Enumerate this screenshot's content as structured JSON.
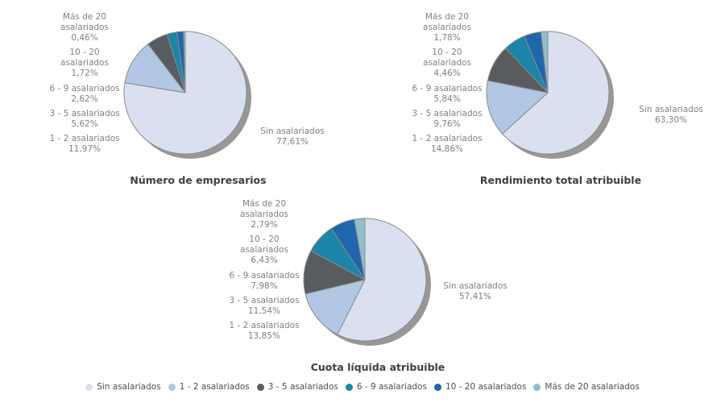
{
  "styles": {
    "background": "#ffffff",
    "slice_stroke": "#8a8a8a",
    "shadow_color": "#979797",
    "label_color": "#818181",
    "title_color": "#3e3e3e",
    "legend_text_color": "#4e4e4e"
  },
  "legend": {
    "items": [
      {
        "label": "Sin asalariados",
        "color": "#dbe0f0"
      },
      {
        "label": "1 - 2 asalariados",
        "color": "#b1c7e3"
      },
      {
        "label": "3 - 5 asalariados",
        "color": "#595c5e"
      },
      {
        "label": "6 - 9 asalariados",
        "color": "#1a85a6"
      },
      {
        "label": "10 - 20 asalariados",
        "color": "#2066ac"
      },
      {
        "label": "Más de 20 asalariados",
        "color": "#90becd"
      }
    ]
  },
  "charts": [
    {
      "title": "Número de empresarios",
      "labels_left": [
        {
          "lines": [
            "Más de 20",
            "asalariados",
            "0,46%"
          ]
        },
        {
          "lines": [
            "10 - 20",
            "asalariados",
            "1,72%"
          ]
        },
        {
          "lines": [
            "6 - 9 asalariados",
            "2,62%"
          ]
        },
        {
          "lines": [
            "3 - 5 asalariados",
            "5,62%"
          ]
        },
        {
          "lines": [
            "1 - 2 asalariados",
            "11,97%"
          ]
        }
      ],
      "label_right": {
        "lines": [
          "Sin asalariados",
          "77,61%"
        ]
      }
    },
    {
      "title": "Rendimiento total atribuible",
      "labels_left": [
        {
          "lines": [
            "Más de 20",
            "asalariados",
            "1,78%"
          ]
        },
        {
          "lines": [
            "10 - 20",
            "asalariados",
            "4,46%"
          ]
        },
        {
          "lines": [
            "6 - 9 asalariados",
            "5,84%"
          ]
        },
        {
          "lines": [
            "3 - 5 asalariados",
            "9,76%"
          ]
        },
        {
          "lines": [
            "1 - 2 asalariados",
            "14,86%"
          ]
        }
      ],
      "label_right": {
        "lines": [
          "Sin asalariados",
          "63,30%"
        ]
      }
    },
    {
      "title": "Cuota líquida atribuible",
      "labels_left": [
        {
          "lines": [
            "Más de 20",
            "asalariados",
            "2,79%"
          ]
        },
        {
          "lines": [
            "10 - 20",
            "asalariados",
            "6,43%"
          ]
        },
        {
          "lines": [
            "6 - 9 asalariados",
            "7,98%"
          ]
        },
        {
          "lines": [
            "3 - 5 asalariados",
            "11,54%"
          ]
        },
        {
          "lines": [
            "1 - 2 asalariados",
            "13,85%"
          ]
        }
      ],
      "label_right": {
        "lines": [
          "Sin asalariados",
          "57,41%"
        ]
      }
    }
  ],
  "chart_data": [
    {
      "type": "pie",
      "title": "Número de empresarios",
      "labels": [
        "Sin asalariados",
        "1 - 2 asalariados",
        "3 - 5 asalariados",
        "6 - 9 asalariados",
        "10 - 20 asalariados",
        "Más de 20 asalariados"
      ],
      "values": [
        77.61,
        11.97,
        5.62,
        2.62,
        1.72,
        0.46
      ],
      "colors": [
        "#dbe0f0",
        "#b1c7e3",
        "#595c5e",
        "#1a85a6",
        "#2066ac",
        "#90becd"
      ],
      "units": "%",
      "start_angle_deg": 0,
      "direction": "clockwise",
      "legend_position": "bottom"
    },
    {
      "type": "pie",
      "title": "Rendimiento total atribuible",
      "labels": [
        "Sin asalariados",
        "1 - 2 asalariados",
        "3 - 5 asalariados",
        "6 - 9 asalariados",
        "10 - 20 asalariados",
        "Más de 20 asalariados"
      ],
      "values": [
        63.3,
        14.86,
        9.76,
        5.84,
        4.46,
        1.78
      ],
      "colors": [
        "#dbe0f0",
        "#b1c7e3",
        "#595c5e",
        "#1a85a6",
        "#2066ac",
        "#90becd"
      ],
      "units": "%",
      "start_angle_deg": 0,
      "direction": "clockwise",
      "legend_position": "bottom"
    },
    {
      "type": "pie",
      "title": "Cuota líquida atribuible",
      "labels": [
        "Sin asalariados",
        "1 - 2 asalariados",
        "3 - 5 asalariados",
        "6 - 9 asalariados",
        "10 - 20 asalariados",
        "Más de 20 asalariados"
      ],
      "values": [
        57.41,
        13.85,
        11.54,
        7.98,
        6.43,
        2.79
      ],
      "colors": [
        "#dbe0f0",
        "#b1c7e3",
        "#595c5e",
        "#1a85a6",
        "#2066ac",
        "#90becd"
      ],
      "units": "%",
      "start_angle_deg": 0,
      "direction": "clockwise",
      "legend_position": "bottom"
    }
  ]
}
